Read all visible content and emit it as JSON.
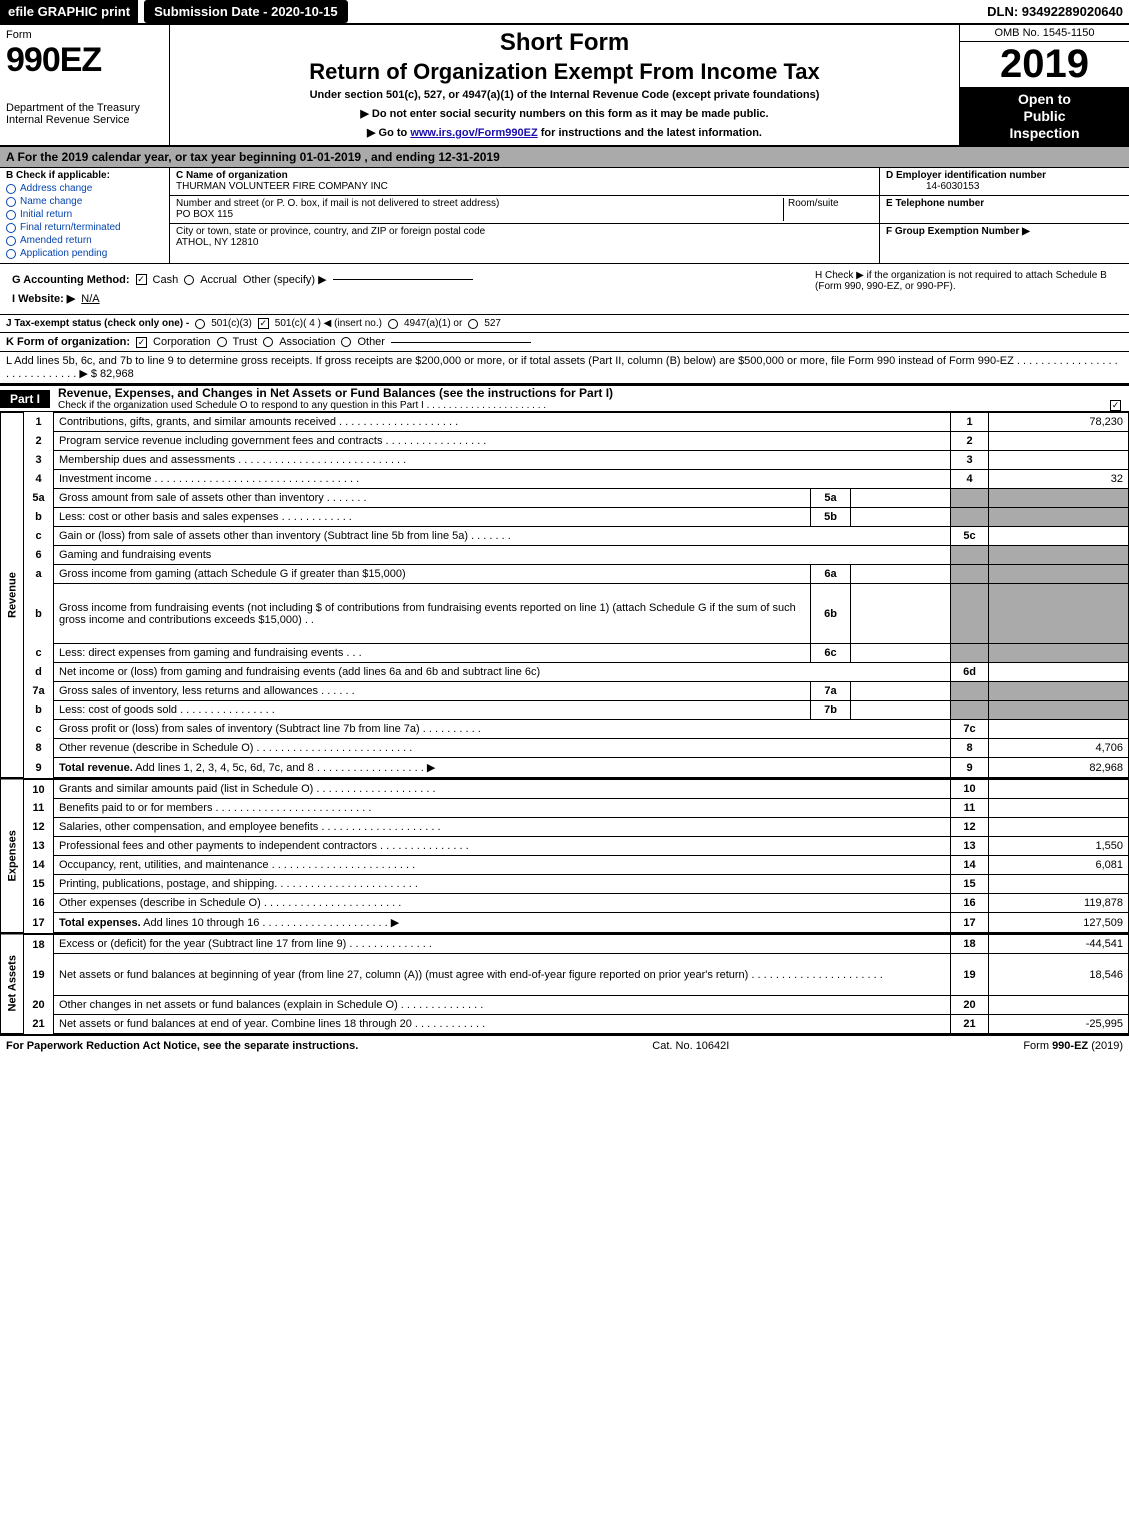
{
  "topbar": {
    "efile": "efile GRAPHIC print",
    "submission": "Submission Date - 2020-10-15",
    "dln": "DLN: 93492289020640"
  },
  "header": {
    "form_word": "Form",
    "form_no": "990EZ",
    "dept": "Department of the Treasury",
    "irs": "Internal Revenue Service",
    "short": "Short Form",
    "title2": "Return of Organization Exempt From Income Tax",
    "sub": "Under section 501(c), 527, or 4947(a)(1) of the Internal Revenue Code (except private foundations)",
    "warn": "▶ Do not enter social security numbers on this form as it may be made public.",
    "goto_pre": "▶ Go to ",
    "goto_link": "www.irs.gov/Form990EZ",
    "goto_post": " for instructions and the latest information.",
    "omb": "OMB No. 1545-1150",
    "year": "2019",
    "inspect1": "Open to",
    "inspect2": "Public",
    "inspect3": "Inspection"
  },
  "period": "A  For the 2019 calendar year, or tax year beginning 01-01-2019 , and ending 12-31-2019",
  "box_b": {
    "head": "B  Check if applicable:",
    "opts": [
      "Address change",
      "Name change",
      "Initial return",
      "Final return/terminated",
      "Amended return",
      "Application pending"
    ]
  },
  "box_c": {
    "c_lbl": "C Name of organization",
    "c_val": "THURMAN VOLUNTEER FIRE COMPANY INC",
    "street_lbl": "Number and street (or P. O. box, if mail is not delivered to street address)",
    "room_lbl": "Room/suite",
    "street_val": "PO BOX 115",
    "city_lbl": "City or town, state or province, country, and ZIP or foreign postal code",
    "city_val": "ATHOL, NY  12810"
  },
  "box_right": {
    "d_lbl": "D Employer identification number",
    "d_val": "14-6030153",
    "e_lbl": "E Telephone number",
    "e_val": "",
    "f_lbl": "F Group Exemption Number   ▶",
    "f_val": ""
  },
  "meta": {
    "g_lbl": "G Accounting Method:",
    "g_cash": "Cash",
    "g_accrual": "Accrual",
    "g_other": "Other (specify) ▶",
    "i_lbl": "I Website: ▶",
    "i_val": "N/A",
    "j_lbl": "J Tax-exempt status (check only one) -",
    "j_1": "501(c)(3)",
    "j_2": "501(c)( 4 ) ◀ (insert no.)",
    "j_3": "4947(a)(1) or",
    "j_4": "527",
    "h_text": "H  Check ▶      if the organization is not required to attach Schedule B (Form 990, 990-EZ, or 990-PF).",
    "k_lbl": "K Form of organization:",
    "k_1": "Corporation",
    "k_2": "Trust",
    "k_3": "Association",
    "k_4": "Other",
    "l_text": "L Add lines 5b, 6c, and 7b to line 9 to determine gross receipts. If gross receipts are $200,000 or more, or if total assets (Part II, column (B) below) are $500,000 or more, file Form 990 instead of Form 990-EZ  . . . . . . . . . . . . . . . . . . . . . . . . . . . . . ▶ $ 82,968"
  },
  "part1": {
    "tag": "Part I",
    "title": "Revenue, Expenses, and Changes in Net Assets or Fund Balances (see the instructions for Part I)",
    "check_o": "Check if the organization used Schedule O to respond to any question in this Part I . . . . . . . . . . . . . . . . . . . . . ."
  },
  "side_labels": {
    "revenue": "Revenue",
    "expenses": "Expenses",
    "netassets": "Net Assets"
  },
  "rows": [
    {
      "n": "1",
      "desc": "Contributions, gifts, grants, and similar amounts received . . . . . . . . . . . . . . . . . . . .",
      "ln": "1",
      "amt": "78,230"
    },
    {
      "n": "2",
      "desc": "Program service revenue including government fees and contracts . . . . . . . . . . . . . . . . .",
      "ln": "2",
      "amt": ""
    },
    {
      "n": "3",
      "desc": "Membership dues and assessments . . . . . . . . . . . . . . . . . . . . . . . . . . . .",
      "ln": "3",
      "amt": ""
    },
    {
      "n": "4",
      "desc": "Investment income . . . . . . . . . . . . . . . . . . . . . . . . . . . . . . . . . .",
      "ln": "4",
      "amt": "32"
    },
    {
      "n": "5a",
      "desc": "Gross amount from sale of assets other than inventory . . . . . . .",
      "sub": "5a",
      "subval": "",
      "shaded": true
    },
    {
      "n": "b",
      "desc": "Less: cost or other basis and sales expenses . . . . . . . . . . . .",
      "sub": "5b",
      "subval": "",
      "shaded": true
    },
    {
      "n": "c",
      "desc": "Gain or (loss) from sale of assets other than inventory (Subtract line 5b from line 5a) . . . . . . .",
      "ln": "5c",
      "amt": ""
    },
    {
      "n": "6",
      "desc": "Gaming and fundraising events",
      "shaded_full": true
    },
    {
      "n": "a",
      "desc": "Gross income from gaming (attach Schedule G if greater than $15,000)",
      "sub": "6a",
      "subval": "",
      "shaded": true
    },
    {
      "n": "b",
      "desc": "Gross income from fundraising events (not including $                        of contributions from fundraising events reported on line 1) (attach Schedule G if the sum of such gross income and contributions exceeds $15,000)       . .",
      "sub": "6b",
      "subval": "",
      "shaded": true,
      "tall": true
    },
    {
      "n": "c",
      "desc": "Less: direct expenses from gaming and fundraising events       . . .",
      "sub": "6c",
      "subval": "",
      "shaded": true
    },
    {
      "n": "d",
      "desc": "Net income or (loss) from gaming and fundraising events (add lines 6a and 6b and subtract line 6c)",
      "ln": "6d",
      "amt": ""
    },
    {
      "n": "7a",
      "desc": "Gross sales of inventory, less returns and allowances . . . . . .",
      "sub": "7a",
      "subval": "",
      "shaded": true
    },
    {
      "n": "b",
      "desc": "Less: cost of goods sold          . . . . . . . . . . . . . . . .",
      "sub": "7b",
      "subval": "",
      "shaded": true
    },
    {
      "n": "c",
      "desc": "Gross profit or (loss) from sales of inventory (Subtract line 7b from line 7a) . . . . . . . . . .",
      "ln": "7c",
      "amt": ""
    },
    {
      "n": "8",
      "desc": "Other revenue (describe in Schedule O) . . . . . . . . . . . . . . . . . . . . . . . . . .",
      "ln": "8",
      "amt": "4,706"
    },
    {
      "n": "9",
      "desc": "Total revenue. Add lines 1, 2, 3, 4, 5c, 6d, 7c, and 8  . . . . . . . . . . . . . . . . . .   ▶",
      "ln": "9",
      "amt": "82,968",
      "bold": true
    }
  ],
  "exp_rows": [
    {
      "n": "10",
      "desc": "Grants and similar amounts paid (list in Schedule O) . . . . . . . . . . . . . . . . . . . .",
      "ln": "10",
      "amt": ""
    },
    {
      "n": "11",
      "desc": "Benefits paid to or for members       . . . . . . . . . . . . . . . . . . . . . . . . . .",
      "ln": "11",
      "amt": ""
    },
    {
      "n": "12",
      "desc": "Salaries, other compensation, and employee benefits . . . . . . . . . . . . . . . . . . . .",
      "ln": "12",
      "amt": ""
    },
    {
      "n": "13",
      "desc": "Professional fees and other payments to independent contractors . . . . . . . . . . . . . . .",
      "ln": "13",
      "amt": "1,550"
    },
    {
      "n": "14",
      "desc": "Occupancy, rent, utilities, and maintenance . . . . . . . . . . . . . . . . . . . . . . . .",
      "ln": "14",
      "amt": "6,081"
    },
    {
      "n": "15",
      "desc": "Printing, publications, postage, and shipping. . . . . . . . . . . . . . . . . . . . . . . .",
      "ln": "15",
      "amt": ""
    },
    {
      "n": "16",
      "desc": "Other expenses (describe in Schedule O)       . . . . . . . . . . . . . . . . . . . . . . .",
      "ln": "16",
      "amt": "119,878"
    },
    {
      "n": "17",
      "desc": "Total expenses. Add lines 10 through 16       . . . . . . . . . . . . . . . . . . . . .   ▶",
      "ln": "17",
      "amt": "127,509",
      "bold": true
    }
  ],
  "na_rows": [
    {
      "n": "18",
      "desc": "Excess or (deficit) for the year (Subtract line 17 from line 9)          . . . . . . . . . . . . . .",
      "ln": "18",
      "amt": "-44,541"
    },
    {
      "n": "19",
      "desc": "Net assets or fund balances at beginning of year (from line 27, column (A)) (must agree with end-of-year figure reported on prior year's return) . . . . . . . . . . . . . . . . . . . . . .",
      "ln": "19",
      "amt": "18,546",
      "tall": true
    },
    {
      "n": "20",
      "desc": "Other changes in net assets or fund balances (explain in Schedule O) . . . . . . . . . . . . . .",
      "ln": "20",
      "amt": ""
    },
    {
      "n": "21",
      "desc": "Net assets or fund balances at end of year. Combine lines 18 through 20 . . . . . . . . . . . .",
      "ln": "21",
      "amt": "-25,995"
    }
  ],
  "footer": {
    "left": "For Paperwork Reduction Act Notice, see the separate instructions.",
    "mid": "Cat. No. 10642I",
    "right_pre": "Form ",
    "right_bold": "990-EZ",
    "right_post": " (2019)"
  },
  "colors": {
    "black": "#000000",
    "gray": "#aaaaaa",
    "link": "#1a0dab",
    "blue": "#0645ad"
  }
}
